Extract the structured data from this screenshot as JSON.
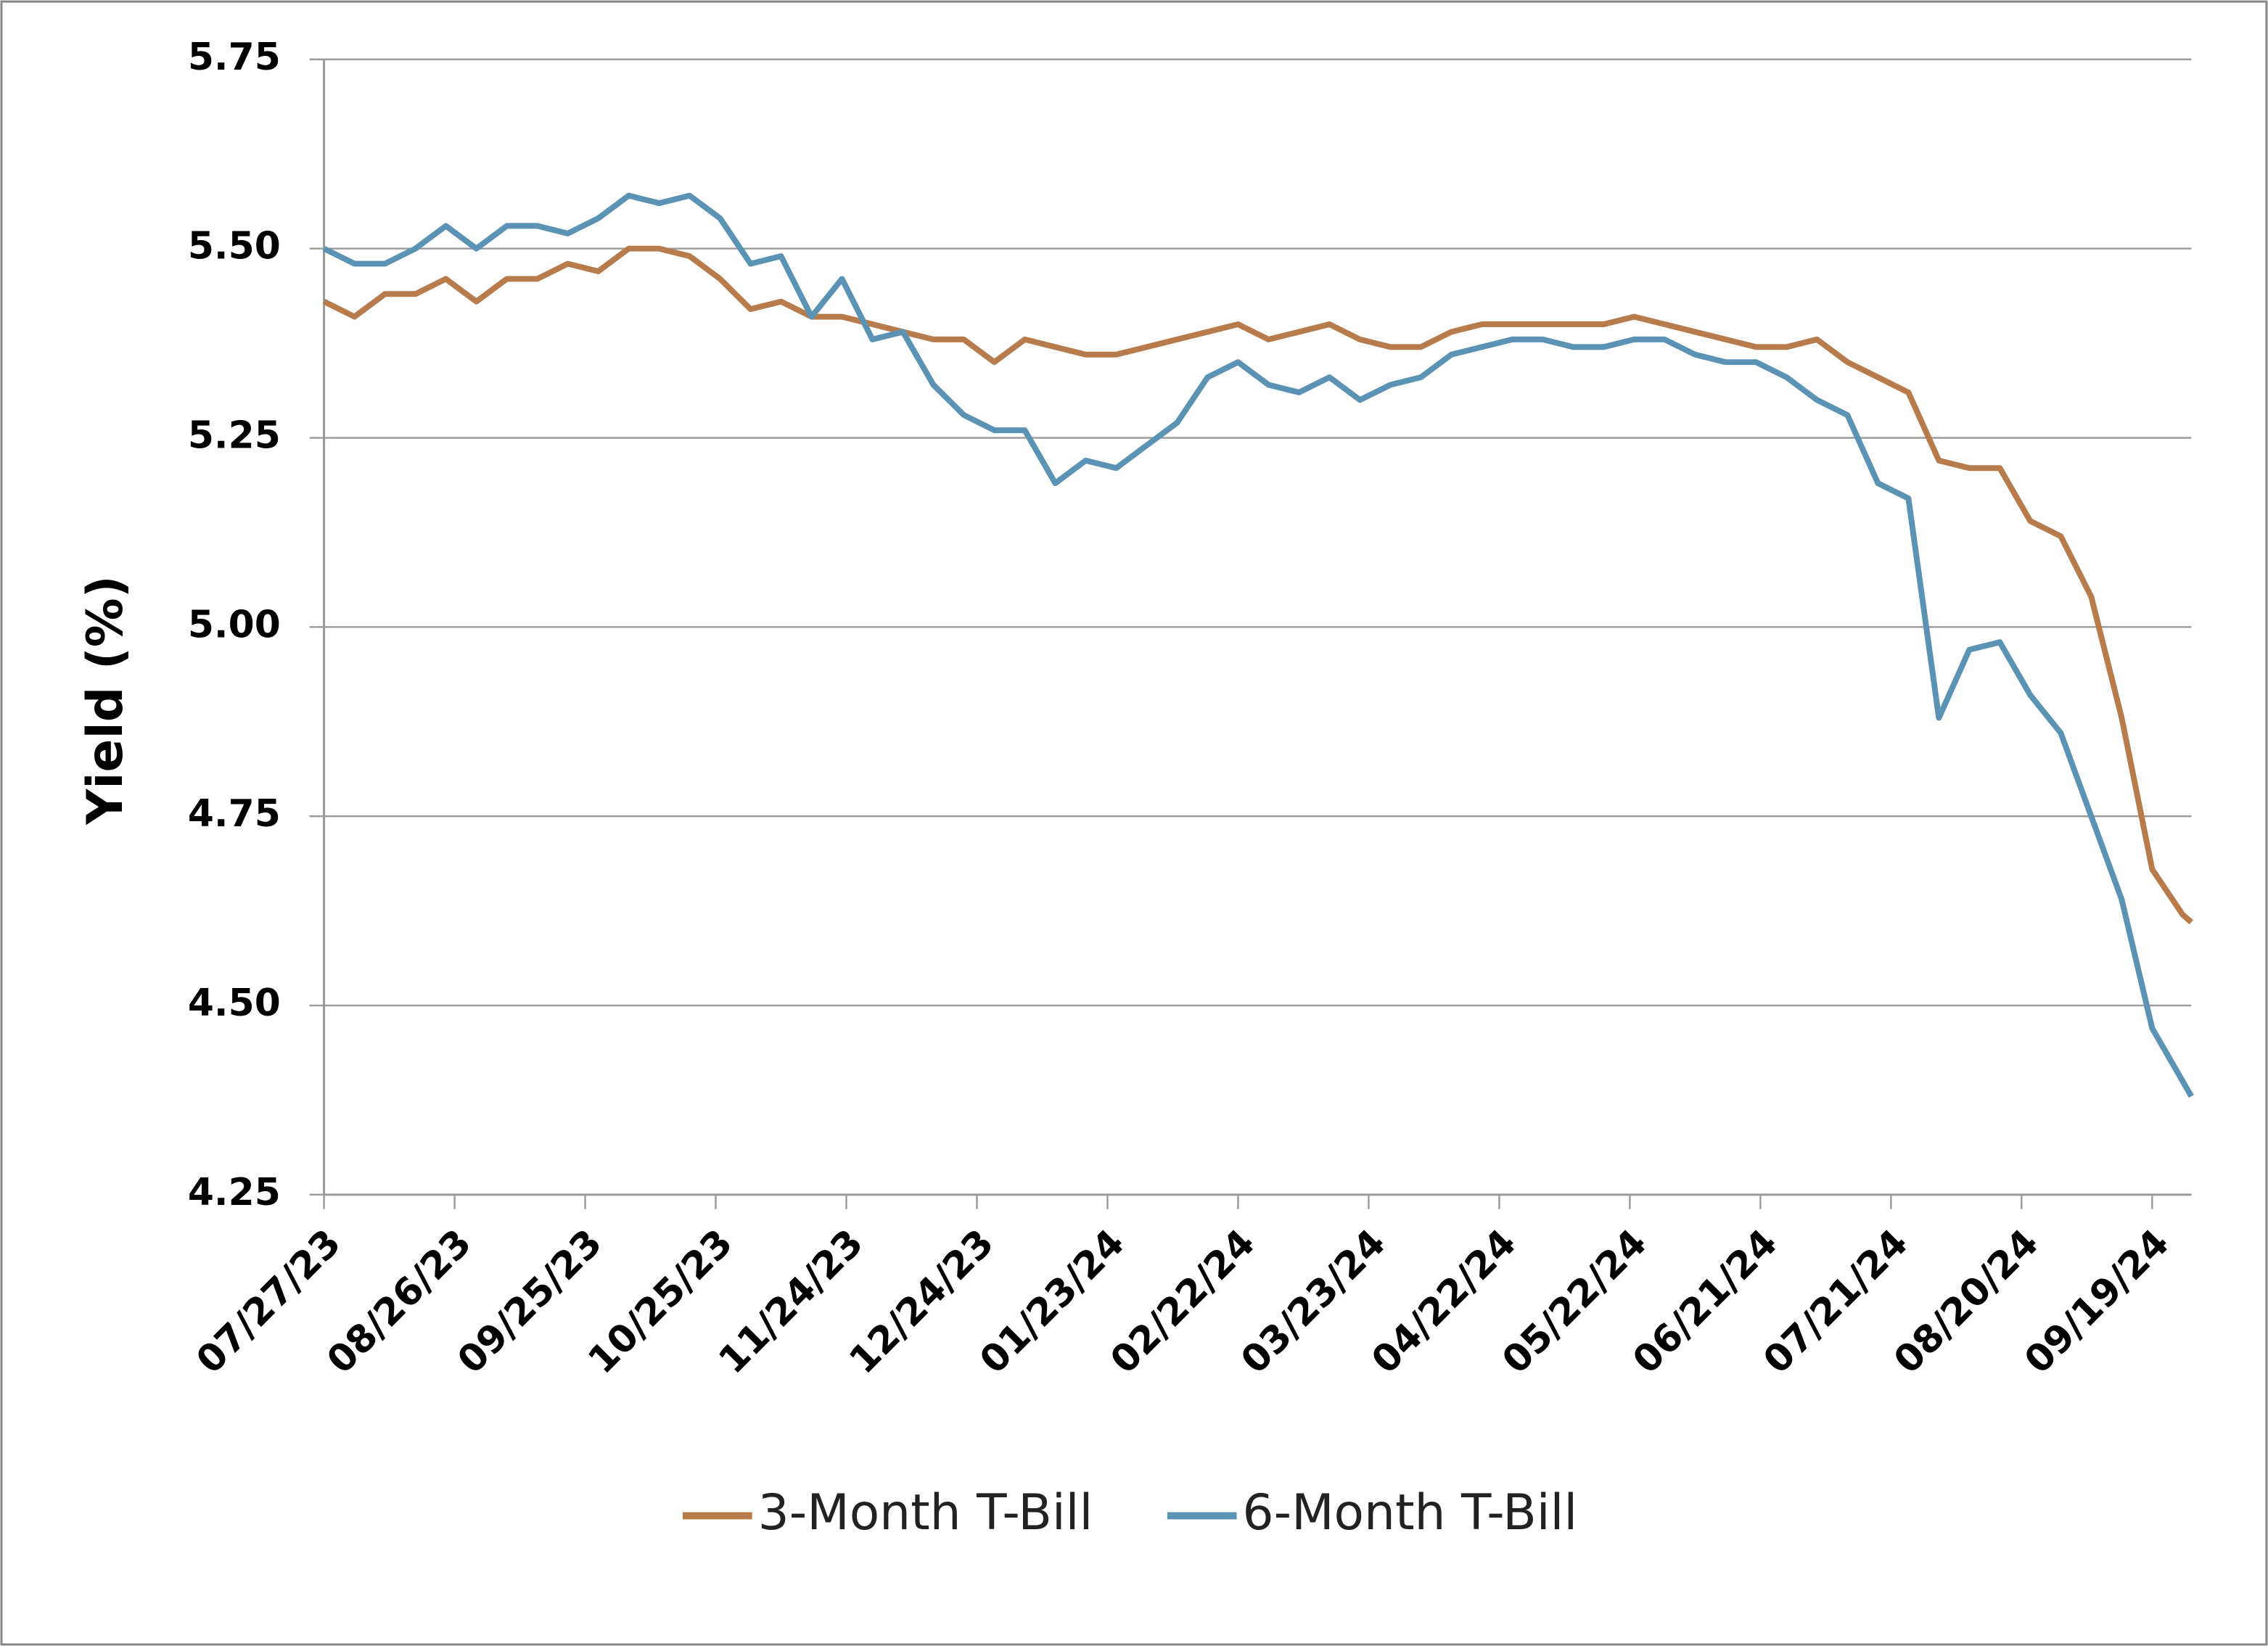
{
  "chart_data": {
    "type": "line",
    "y_label": "Yield (%)",
    "x": [
      "07/27/23",
      "08/03/23",
      "08/10/23",
      "08/17/23",
      "08/24/23",
      "08/31/23",
      "09/07/23",
      "09/14/23",
      "09/21/23",
      "09/28/23",
      "10/05/23",
      "10/12/23",
      "10/19/23",
      "10/26/23",
      "11/02/23",
      "11/09/23",
      "11/16/23",
      "11/23/23",
      "11/30/23",
      "12/07/23",
      "12/14/23",
      "12/21/23",
      "12/28/23",
      "01/04/24",
      "01/11/24",
      "01/18/24",
      "01/25/24",
      "02/01/24",
      "02/08/24",
      "02/15/24",
      "02/22/24",
      "02/29/24",
      "03/07/24",
      "03/14/24",
      "03/21/24",
      "03/28/24",
      "04/04/24",
      "04/11/24",
      "04/18/24",
      "04/25/24",
      "05/02/24",
      "05/09/24",
      "05/16/24",
      "05/23/24",
      "05/30/24",
      "06/06/24",
      "06/13/24",
      "06/20/24",
      "06/27/24",
      "07/04/24",
      "07/11/24",
      "07/18/24",
      "07/25/24",
      "08/01/24",
      "08/08/24",
      "08/15/24",
      "08/22/24",
      "08/29/24",
      "09/05/24",
      "09/12/24",
      "09/19/24",
      "09/26/24",
      "09/28/24"
    ],
    "series": [
      {
        "name": "3-Month T-Bill",
        "color": "#b87c4c",
        "values": [
          5.43,
          5.41,
          5.44,
          5.44,
          5.46,
          5.43,
          5.46,
          5.46,
          5.48,
          5.47,
          5.5,
          5.5,
          5.49,
          5.46,
          5.42,
          5.43,
          5.41,
          5.41,
          5.4,
          5.39,
          5.38,
          5.38,
          5.35,
          5.38,
          5.37,
          5.36,
          5.36,
          5.37,
          5.38,
          5.39,
          5.4,
          5.38,
          5.39,
          5.4,
          5.38,
          5.37,
          5.37,
          5.39,
          5.4,
          5.4,
          5.4,
          5.4,
          5.4,
          5.41,
          5.4,
          5.39,
          5.38,
          5.37,
          5.37,
          5.38,
          5.35,
          5.33,
          5.31,
          5.22,
          5.21,
          5.21,
          5.14,
          5.12,
          5.04,
          4.88,
          4.68,
          4.62,
          4.61
        ]
      },
      {
        "name": "6-Month T-Bill",
        "color": "#5b93b5",
        "values": [
          5.5,
          5.48,
          5.48,
          5.5,
          5.53,
          5.5,
          5.53,
          5.53,
          5.52,
          5.54,
          5.57,
          5.56,
          5.57,
          5.54,
          5.48,
          5.49,
          5.41,
          5.46,
          5.38,
          5.39,
          5.32,
          5.28,
          5.26,
          5.26,
          5.19,
          5.22,
          5.21,
          5.24,
          5.27,
          5.33,
          5.35,
          5.32,
          5.31,
          5.33,
          5.3,
          5.32,
          5.33,
          5.36,
          5.37,
          5.38,
          5.38,
          5.37,
          5.37,
          5.38,
          5.38,
          5.36,
          5.35,
          5.35,
          5.33,
          5.3,
          5.28,
          5.19,
          5.17,
          4.88,
          4.97,
          4.98,
          4.91,
          4.86,
          4.75,
          4.64,
          4.47,
          4.4,
          4.38
        ]
      }
    ],
    "xlim": [
      "07/27/23",
      "09/28/24"
    ],
    "xticks": [
      "07/27/23",
      "08/26/23",
      "09/25/23",
      "10/25/23",
      "11/24/23",
      "12/24/23",
      "01/23/24",
      "02/22/24",
      "03/23/24",
      "04/22/24",
      "05/22/24",
      "06/21/24",
      "07/21/24",
      "08/20/24",
      "09/19/24"
    ],
    "ylim": [
      4.25,
      5.75
    ],
    "yticks": [
      {
        "value": 4.25,
        "label": "4.25"
      },
      {
        "value": 4.5,
        "label": "4.50"
      },
      {
        "value": 4.75,
        "label": "4.75"
      },
      {
        "value": 5,
        "label": "5.00"
      },
      {
        "value": 5.25,
        "label": "5.25"
      },
      {
        "value": 5.5,
        "label": "5.50"
      },
      {
        "value": 5.75,
        "label": "5.75"
      }
    ],
    "grid": true,
    "legend": "bottom"
  }
}
